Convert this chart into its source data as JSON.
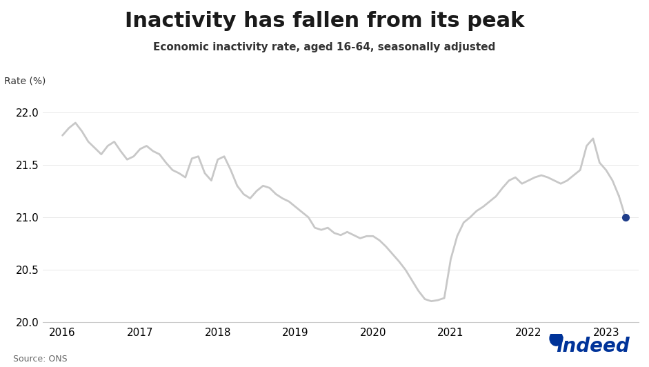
{
  "title": "Inactivity has fallen from its peak",
  "subtitle": "Economic inactivity rate, aged 16-64, seasonally adjusted",
  "ylabel": "Rate (%)",
  "source": "Source: ONS",
  "ylim": [
    20.0,
    22.25
  ],
  "yticks": [
    20.0,
    20.5,
    21.0,
    21.5,
    22.0
  ],
  "line_color": "#c8c8c8",
  "last_point_color": "#1f3d8a",
  "background_color": "#ffffff",
  "dates": [
    2016.0,
    2016.083,
    2016.167,
    2016.25,
    2016.333,
    2016.417,
    2016.5,
    2016.583,
    2016.667,
    2016.75,
    2016.833,
    2016.917,
    2017.0,
    2017.083,
    2017.167,
    2017.25,
    2017.333,
    2017.417,
    2017.5,
    2017.583,
    2017.667,
    2017.75,
    2017.833,
    2017.917,
    2018.0,
    2018.083,
    2018.167,
    2018.25,
    2018.333,
    2018.417,
    2018.5,
    2018.583,
    2018.667,
    2018.75,
    2018.833,
    2018.917,
    2019.0,
    2019.083,
    2019.167,
    2019.25,
    2019.333,
    2019.417,
    2019.5,
    2019.583,
    2019.667,
    2019.75,
    2019.833,
    2019.917,
    2020.0,
    2020.083,
    2020.167,
    2020.25,
    2020.333,
    2020.417,
    2020.5,
    2020.583,
    2020.667,
    2020.75,
    2020.833,
    2020.917,
    2021.0,
    2021.083,
    2021.167,
    2021.25,
    2021.333,
    2021.417,
    2021.5,
    2021.583,
    2021.667,
    2021.75,
    2021.833,
    2021.917,
    2022.0,
    2022.083,
    2022.167,
    2022.25,
    2022.333,
    2022.417,
    2022.5,
    2022.583,
    2022.667,
    2022.75,
    2022.833,
    2022.917,
    2023.0,
    2023.083,
    2023.167,
    2023.25
  ],
  "values": [
    21.78,
    21.85,
    21.9,
    21.82,
    21.72,
    21.66,
    21.6,
    21.68,
    21.72,
    21.63,
    21.55,
    21.58,
    21.65,
    21.68,
    21.63,
    21.6,
    21.52,
    21.45,
    21.42,
    21.38,
    21.56,
    21.58,
    21.42,
    21.35,
    21.55,
    21.58,
    21.45,
    21.3,
    21.22,
    21.18,
    21.25,
    21.3,
    21.28,
    21.22,
    21.18,
    21.15,
    21.1,
    21.05,
    21.0,
    20.9,
    20.88,
    20.9,
    20.85,
    20.83,
    20.86,
    20.83,
    20.8,
    20.82,
    20.82,
    20.78,
    20.72,
    20.65,
    20.58,
    20.5,
    20.4,
    20.3,
    20.22,
    20.2,
    20.21,
    20.23,
    20.6,
    20.82,
    20.95,
    21.0,
    21.06,
    21.1,
    21.15,
    21.2,
    21.28,
    21.35,
    21.38,
    21.32,
    21.35,
    21.38,
    21.4,
    21.38,
    21.35,
    21.32,
    21.35,
    21.4,
    21.45,
    21.68,
    21.75,
    21.52,
    21.45,
    21.35,
    21.2,
    21.0
  ],
  "xtick_labels": [
    "2016",
    "2017",
    "2018",
    "2019",
    "2020",
    "2021",
    "2022",
    "2023"
  ],
  "xtick_positions": [
    2016.0,
    2017.0,
    2018.0,
    2019.0,
    2020.0,
    2021.0,
    2022.0,
    2023.0
  ],
  "indeed_text": "indeed",
  "indeed_color": "#003399",
  "title_fontsize": 22,
  "subtitle_fontsize": 11,
  "axis_label_fontsize": 10,
  "tick_fontsize": 11
}
